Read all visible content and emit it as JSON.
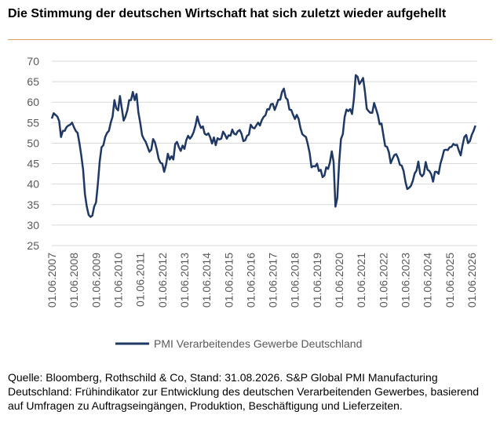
{
  "chart_data": {
    "type": "line",
    "title": "Die Stimmung der deutschen Wirtschaft hat sich zuletzt wieder aufgehellt",
    "source": "Quelle: Bloomberg, Rothschild & Co, Stand: 31.08.2026. S&P Global PMI Manufacturing Deutschland: Frühindikator zur Entwicklung des deutschen Verarbeitenden Gewerbes, basierend auf Umfragen zu Auftragseingängen, Produktion, Beschäftigung und Lieferzeiten.",
    "categories": [
      "01.06.2007",
      null,
      null,
      null,
      null,
      null,
      null,
      null,
      null,
      null,
      null,
      null,
      "01.06.2008",
      null,
      null,
      null,
      null,
      null,
      null,
      null,
      null,
      null,
      null,
      null,
      "01.06.2009",
      null,
      null,
      null,
      null,
      null,
      null,
      null,
      null,
      null,
      null,
      null,
      "01.06.2010",
      null,
      null,
      null,
      null,
      null,
      null,
      null,
      null,
      null,
      null,
      null,
      "01.06.2011",
      null,
      null,
      null,
      null,
      null,
      null,
      null,
      null,
      null,
      null,
      null,
      "01.06.2012",
      null,
      null,
      null,
      null,
      null,
      null,
      null,
      null,
      null,
      null,
      null,
      "01.06.2013",
      null,
      null,
      null,
      null,
      null,
      null,
      null,
      null,
      null,
      null,
      null,
      "01.06.2014",
      null,
      null,
      null,
      null,
      null,
      null,
      null,
      null,
      null,
      null,
      null,
      "01.06.2015",
      null,
      null,
      null,
      null,
      null,
      null,
      null,
      null,
      null,
      null,
      null,
      "01.06.2016",
      null,
      null,
      null,
      null,
      null,
      null,
      null,
      null,
      null,
      null,
      null,
      "01.06.2017",
      null,
      null,
      null,
      null,
      null,
      null,
      null,
      null,
      null,
      null,
      null,
      "01.06.2018",
      null,
      null,
      null,
      null,
      null,
      null,
      null,
      null,
      null,
      null,
      null,
      "01.06.2019",
      null,
      null,
      null,
      null,
      null,
      null,
      null,
      null,
      null,
      null,
      null,
      "01.06.2020",
      null,
      null,
      null,
      null,
      null,
      null,
      null,
      null,
      null,
      null,
      null,
      "01.06.2021",
      null,
      null,
      null,
      null,
      null,
      null,
      null,
      null,
      null,
      null,
      null,
      "01.06.2022",
      null,
      null,
      null,
      null,
      null,
      null,
      null,
      null,
      null,
      null,
      null,
      "01.06.2023",
      null,
      null,
      null,
      null,
      null,
      null,
      null,
      null,
      null,
      null,
      null,
      "01.06.2024",
      null,
      null,
      null,
      null,
      null,
      null,
      null,
      null,
      null,
      null,
      null,
      "01.06.2025",
      null,
      null,
      null,
      null,
      null,
      null,
      null,
      null,
      null,
      null,
      null,
      "01.06.2026",
      null,
      null
    ],
    "series": [
      {
        "name": "PMI Verarbeitendes Gewerbe Deutschland",
        "color": "#1f3864",
        "values": [
          56.0,
          57.3,
          56.9,
          56.5,
          55.4,
          51.5,
          53.0,
          53.0,
          53.9,
          54.3,
          54.5,
          55.0,
          53.9,
          53.0,
          52.5,
          50.0,
          47.0,
          43.5,
          37.5,
          34.5,
          32.5,
          32.0,
          32.3,
          34.5,
          35.5,
          40.0,
          45.5,
          49.0,
          49.5,
          51.5,
          52.5,
          53.0,
          55.0,
          56.5,
          60.5,
          58.5,
          58.0,
          61.5,
          58.5,
          55.5,
          56.5,
          58.0,
          60.5,
          60.5,
          62.5,
          60.5,
          62.0,
          57.5,
          55.0,
          52.0,
          51.0,
          50.3,
          49.1,
          47.9,
          48.4,
          51.0,
          50.2,
          48.4,
          46.2,
          45.2,
          45.0,
          43.0,
          44.7,
          47.4,
          46.0,
          46.8,
          46.0,
          49.8,
          50.3,
          49.0,
          48.1,
          49.4,
          48.6,
          50.7,
          51.8,
          51.1,
          51.7,
          52.7,
          54.3,
          56.5,
          54.8,
          53.7,
          54.1,
          52.3,
          52.0,
          52.4,
          51.4,
          49.9,
          51.4,
          49.5,
          51.2,
          50.9,
          51.1,
          52.8,
          52.1,
          51.1,
          51.9,
          51.8,
          53.3,
          52.3,
          52.1,
          52.9,
          53.2,
          52.3,
          50.5,
          50.7,
          51.8,
          52.1,
          54.5,
          53.8,
          53.6,
          54.3,
          55.0,
          54.3,
          55.6,
          56.4,
          56.8,
          58.3,
          58.2,
          59.5,
          59.6,
          58.1,
          59.3,
          60.6,
          60.6,
          62.5,
          63.3,
          61.1,
          60.6,
          58.2,
          58.1,
          56.9,
          55.9,
          56.9,
          55.9,
          53.7,
          52.2,
          51.8,
          51.5,
          49.7,
          47.6,
          44.1,
          44.4,
          44.3,
          45.0,
          43.2,
          43.5,
          41.7,
          42.1,
          44.1,
          43.7,
          45.3,
          48.0,
          45.4,
          34.5,
          36.6,
          45.2,
          51.0,
          52.2,
          56.4,
          58.2,
          57.8,
          58.3,
          57.1,
          60.7,
          66.6,
          66.2,
          64.4,
          65.1,
          65.9,
          62.6,
          58.4,
          57.8,
          57.4,
          57.4,
          59.8,
          58.4,
          56.9,
          54.6,
          54.8,
          52.0,
          49.3,
          49.1,
          47.8,
          45.1,
          46.2,
          47.1,
          47.3,
          46.3,
          44.7,
          44.5,
          43.2,
          40.6,
          38.8,
          39.1,
          39.6,
          40.8,
          42.6,
          43.3,
          45.5,
          42.5,
          41.9,
          42.5,
          45.4,
          43.5,
          43.2,
          42.4,
          40.6,
          43.0,
          43.0,
          42.5,
          45.0,
          46.5,
          48.3,
          48.4,
          48.3,
          49.0,
          49.1,
          49.8,
          49.5,
          49.6,
          48.2,
          47.0,
          49.5,
          51.5,
          52.0,
          50.0,
          50.5,
          52.0,
          53.0,
          54.3
        ]
      }
    ],
    "ylim": [
      25,
      70
    ],
    "yticks": [
      25,
      30,
      35,
      40,
      45,
      50,
      55,
      60,
      65,
      70
    ],
    "grid": true,
    "legend": "bottom"
  }
}
